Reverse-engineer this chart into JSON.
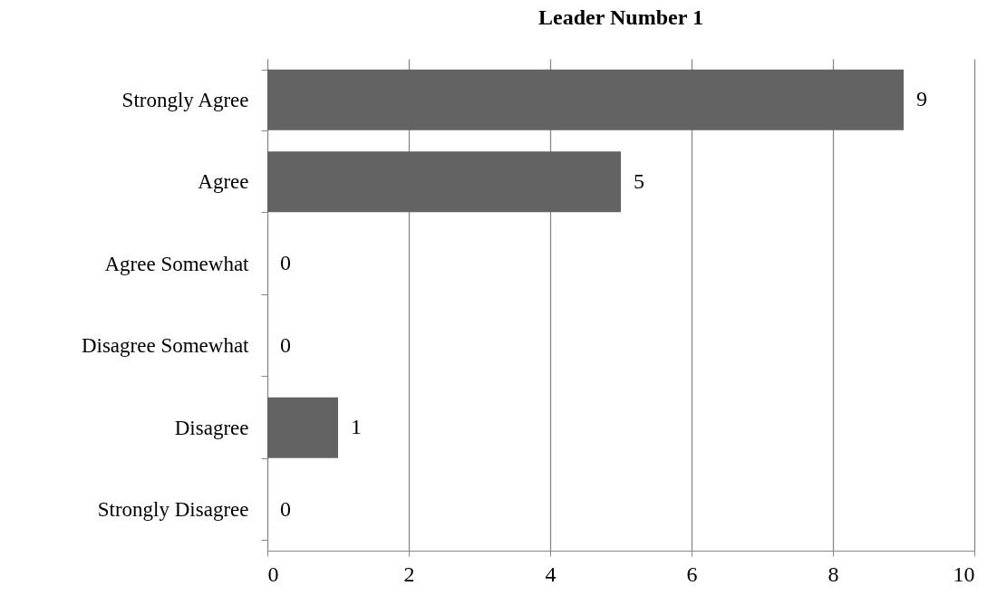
{
  "chart_data": {
    "type": "bar",
    "orientation": "horizontal",
    "title": "Leader Number 1",
    "categories": [
      "Strongly Agree",
      "Agree",
      "Agree Somewhat",
      "Disagree Somewhat",
      "Disagree",
      "Strongly Disagree"
    ],
    "values": [
      9,
      5,
      0,
      0,
      1,
      0
    ],
    "color": "#636363",
    "xlim": [
      0,
      10
    ],
    "xticks": [
      0,
      2,
      4,
      6,
      8,
      10
    ],
    "grid": "x",
    "data_labels": true
  }
}
